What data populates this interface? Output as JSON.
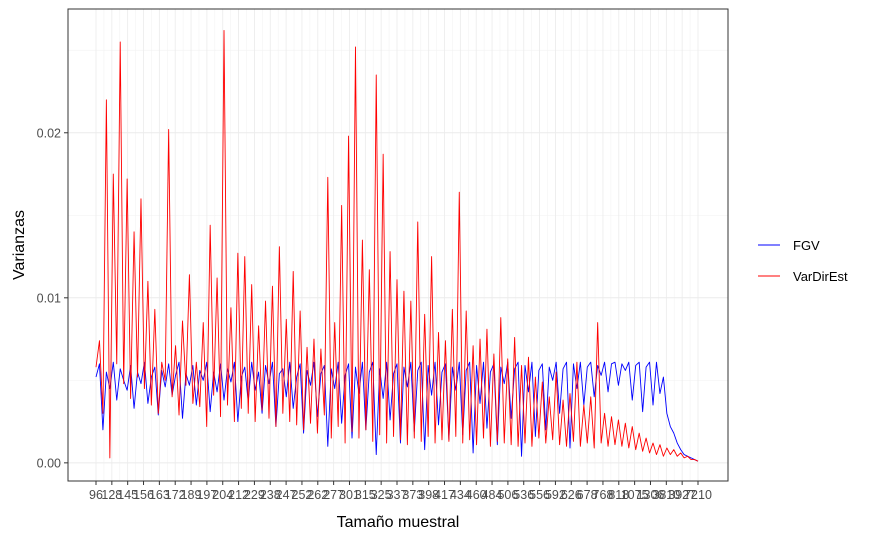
{
  "chart_data": {
    "type": "line",
    "xlabel": "Tamaño muestral",
    "ylabel": "Varianzas",
    "y_ticks": [
      0.0,
      0.01,
      0.02
    ],
    "y_tick_labels": [
      "0.00",
      "0.01",
      "0.02"
    ],
    "ylim": [
      -0.0011,
      0.0275
    ],
    "grid": true,
    "legend_position": "right",
    "x_tick_labels": [
      "96",
      "128",
      "145",
      "156",
      "163",
      "172",
      "189",
      "197",
      "204",
      "212",
      "229",
      "238",
      "247",
      "252",
      "262",
      "277",
      "301",
      "315",
      "325",
      "337",
      "373",
      "398",
      "417",
      "434",
      "460",
      "484",
      "506",
      "536",
      "556",
      "592",
      "626",
      "678",
      "768",
      "818",
      "1075",
      "1306",
      "3810",
      "3927",
      "7210"
    ],
    "series": [
      {
        "name": "FGV",
        "color": "#0000ff",
        "values": [
          0.0052,
          0.006,
          0.002,
          0.0055,
          0.0045,
          0.0061,
          0.0038,
          0.0057,
          0.005,
          0.0044,
          0.0059,
          0.0033,
          0.0055,
          0.0048,
          0.0061,
          0.0036,
          0.0052,
          0.0058,
          0.0029,
          0.0056,
          0.0046,
          0.006,
          0.0041,
          0.0053,
          0.0061,
          0.0027,
          0.0054,
          0.0047,
          0.0059,
          0.0035,
          0.0056,
          0.005,
          0.0061,
          0.0031,
          0.0055,
          0.0043,
          0.006,
          0.0038,
          0.0057,
          0.0049,
          0.0061,
          0.0025,
          0.0052,
          0.0058,
          0.0037,
          0.0061,
          0.0044,
          0.0055,
          0.003,
          0.0059,
          0.0048,
          0.0061,
          0.0022,
          0.0054,
          0.0057,
          0.004,
          0.0061,
          0.0033,
          0.0052,
          0.006,
          0.0018,
          0.0056,
          0.0047,
          0.0061,
          0.0028,
          0.0054,
          0.0059,
          0.001,
          0.0057,
          0.0045,
          0.0061,
          0.0024,
          0.0053,
          0.006,
          0.0015,
          0.0058,
          0.0042,
          0.0061,
          0.002,
          0.0055,
          0.0061,
          0.0005,
          0.0057,
          0.0039,
          0.0061,
          0.0026,
          0.0054,
          0.006,
          0.0012,
          0.0058,
          0.0046,
          0.0061,
          0.0019,
          0.0056,
          0.0061,
          0.0008,
          0.0059,
          0.0041,
          0.0061,
          0.0023,
          0.0055,
          0.006,
          0.0014,
          0.0058,
          0.0044,
          0.0061,
          0.0017,
          0.0056,
          0.0061,
          0.0006,
          0.0059,
          0.0036,
          0.0061,
          0.0021,
          0.0055,
          0.006,
          0.0011,
          0.0058,
          0.0048,
          0.0061,
          0.0027,
          0.0057,
          0.0061,
          0.0004,
          0.0059,
          0.0043,
          0.0061,
          0.0016,
          0.0056,
          0.006,
          0.002,
          0.0058,
          0.005,
          0.0061,
          0.003,
          0.0057,
          0.0061,
          0.0009,
          0.006,
          0.0045,
          0.0061,
          0.0035,
          0.0058,
          0.0061,
          0.004,
          0.0059,
          0.0053,
          0.0061,
          0.0043,
          0.006,
          0.0061,
          0.0047,
          0.006,
          0.0056,
          0.0061,
          0.0038,
          0.0059,
          0.0061,
          0.0031,
          0.0058,
          0.0061,
          0.0035,
          0.0061,
          0.0042,
          0.0052,
          0.003,
          0.0022,
          0.0018,
          0.0012,
          0.0008,
          0.0005,
          0.0004,
          0.0003,
          0.0002,
          0.0001
        ]
      },
      {
        "name": "VarDirEst",
        "color": "#ff0000",
        "values": [
          0.0058,
          0.0074,
          0.003,
          0.022,
          0.0003,
          0.0175,
          0.006,
          0.0255,
          0.0048,
          0.0172,
          0.0039,
          0.014,
          0.0052,
          0.016,
          0.0045,
          0.011,
          0.0035,
          0.0093,
          0.003,
          0.0061,
          0.005,
          0.0202,
          0.004,
          0.0071,
          0.0029,
          0.0086,
          0.0047,
          0.0114,
          0.0036,
          0.0061,
          0.0034,
          0.0085,
          0.0022,
          0.0144,
          0.0041,
          0.0112,
          0.0028,
          0.0262,
          0.0035,
          0.0094,
          0.0025,
          0.0127,
          0.0033,
          0.0125,
          0.003,
          0.0108,
          0.0025,
          0.0083,
          0.0032,
          0.0098,
          0.0027,
          0.0107,
          0.0022,
          0.0131,
          0.003,
          0.0087,
          0.0025,
          0.0116,
          0.0023,
          0.0092,
          0.002,
          0.007,
          0.0024,
          0.0075,
          0.0018,
          0.0069,
          0.0029,
          0.0173,
          0.0015,
          0.0085,
          0.0022,
          0.0156,
          0.0012,
          0.0198,
          0.0019,
          0.0252,
          0.0015,
          0.0135,
          0.002,
          0.0117,
          0.0013,
          0.0235,
          0.0017,
          0.0187,
          0.0012,
          0.0128,
          0.0016,
          0.0111,
          0.0014,
          0.0104,
          0.0011,
          0.0098,
          0.0015,
          0.0146,
          0.0013,
          0.009,
          0.0016,
          0.0125,
          0.0012,
          0.0079,
          0.0014,
          0.0074,
          0.0013,
          0.0093,
          0.0016,
          0.0164,
          0.0012,
          0.0092,
          0.0014,
          0.0071,
          0.0011,
          0.0075,
          0.0015,
          0.0081,
          0.001,
          0.0066,
          0.0013,
          0.0088,
          0.0012,
          0.0063,
          0.0011,
          0.0076,
          0.001,
          0.0059,
          0.0012,
          0.0064,
          0.001,
          0.0052,
          0.0015,
          0.0049,
          0.0012,
          0.004,
          0.0014,
          0.0055,
          0.0011,
          0.0038,
          0.001,
          0.0042,
          0.0013,
          0.0061,
          0.001,
          0.0035,
          0.0012,
          0.004,
          0.0009,
          0.0085,
          0.0012,
          0.003,
          0.001,
          0.0028,
          0.0011,
          0.0026,
          0.001,
          0.0024,
          0.0009,
          0.0022,
          0.0008,
          0.0018,
          0.0007,
          0.0015,
          0.0006,
          0.0012,
          0.0005,
          0.0011,
          0.0004,
          0.0009,
          0.0005,
          0.0008,
          0.0004,
          0.0006,
          0.0003,
          0.0004,
          0.0002,
          0.0002,
          0.0001
        ]
      }
    ]
  }
}
